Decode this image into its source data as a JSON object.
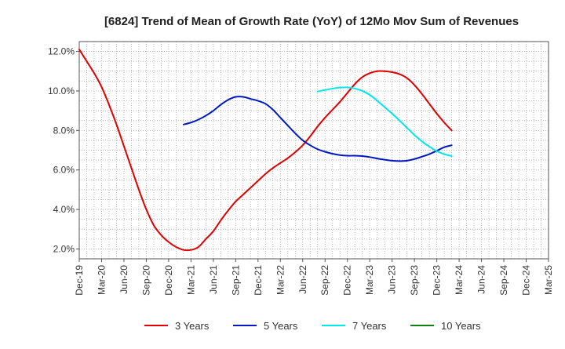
{
  "chart_data": {
    "type": "line",
    "title": "[6824]  Trend of Mean of Growth Rate (YoY) of 12Mo Mov Sum of Revenues",
    "xlabel": "",
    "ylabel": "",
    "ylim": [
      1.5,
      12.5
    ],
    "y_ticks": [
      2.0,
      4.0,
      6.0,
      8.0,
      10.0,
      12.0
    ],
    "y_tick_labels": [
      "2.0%",
      "4.0%",
      "6.0%",
      "8.0%",
      "10.0%",
      "12.0%"
    ],
    "x_tick_labels": [
      "Dec-19",
      "Mar-20",
      "Jun-20",
      "Sep-20",
      "Dec-20",
      "Mar-21",
      "Jun-21",
      "Sep-21",
      "Dec-21",
      "Mar-22",
      "Jun-22",
      "Sep-22",
      "Dec-22",
      "Mar-23",
      "Jun-23",
      "Sep-23",
      "Dec-23",
      "Mar-24",
      "Jun-24",
      "Sep-24",
      "Dec-24",
      "Mar-25"
    ],
    "x_range_months": [
      0,
      63
    ],
    "grid": true,
    "legend_position": "bottom",
    "series": [
      {
        "name": "3 Years",
        "color": "#e00000",
        "points": [
          [
            0,
            12.1
          ],
          [
            1,
            11.5
          ],
          [
            2,
            10.9
          ],
          [
            3,
            10.2
          ],
          [
            4,
            9.3
          ],
          [
            5,
            8.3
          ],
          [
            6,
            7.2
          ],
          [
            7,
            6.1
          ],
          [
            8,
            5.0
          ],
          [
            9,
            4.0
          ],
          [
            10,
            3.2
          ],
          [
            11,
            2.7
          ],
          [
            12,
            2.35
          ],
          [
            13,
            2.1
          ],
          [
            14,
            1.95
          ],
          [
            15,
            1.95
          ],
          [
            16,
            2.1
          ],
          [
            17,
            2.5
          ],
          [
            18,
            2.9
          ],
          [
            19,
            3.45
          ],
          [
            20,
            3.95
          ],
          [
            21,
            4.4
          ],
          [
            22,
            4.75
          ],
          [
            23,
            5.1
          ],
          [
            24,
            5.45
          ],
          [
            25,
            5.8
          ],
          [
            26,
            6.1
          ],
          [
            27,
            6.35
          ],
          [
            28,
            6.6
          ],
          [
            29,
            6.9
          ],
          [
            30,
            7.25
          ],
          [
            31,
            7.7
          ],
          [
            32,
            8.2
          ],
          [
            33,
            8.65
          ],
          [
            34,
            9.05
          ],
          [
            35,
            9.45
          ],
          [
            36,
            9.9
          ],
          [
            37,
            10.35
          ],
          [
            38,
            10.7
          ],
          [
            39,
            10.9
          ],
          [
            40,
            11.0
          ],
          [
            41,
            11.0
          ],
          [
            42,
            10.95
          ],
          [
            43,
            10.85
          ],
          [
            44,
            10.65
          ],
          [
            45,
            10.3
          ],
          [
            46,
            9.85
          ],
          [
            47,
            9.35
          ],
          [
            48,
            8.85
          ],
          [
            49,
            8.4
          ],
          [
            50,
            8.0
          ]
        ]
      },
      {
        "name": "5 Years",
        "color": "#0018c0",
        "points": [
          [
            14,
            8.3
          ],
          [
            15,
            8.4
          ],
          [
            16,
            8.55
          ],
          [
            17,
            8.75
          ],
          [
            18,
            9.0
          ],
          [
            19,
            9.3
          ],
          [
            20,
            9.55
          ],
          [
            21,
            9.7
          ],
          [
            22,
            9.7
          ],
          [
            23,
            9.6
          ],
          [
            24,
            9.5
          ],
          [
            25,
            9.35
          ],
          [
            26,
            9.05
          ],
          [
            27,
            8.65
          ],
          [
            28,
            8.25
          ],
          [
            29,
            7.85
          ],
          [
            30,
            7.5
          ],
          [
            31,
            7.25
          ],
          [
            32,
            7.05
          ],
          [
            33,
            6.92
          ],
          [
            34,
            6.82
          ],
          [
            35,
            6.75
          ],
          [
            36,
            6.72
          ],
          [
            37,
            6.72
          ],
          [
            38,
            6.7
          ],
          [
            39,
            6.65
          ],
          [
            40,
            6.58
          ],
          [
            41,
            6.52
          ],
          [
            42,
            6.47
          ],
          [
            43,
            6.45
          ],
          [
            44,
            6.47
          ],
          [
            45,
            6.55
          ],
          [
            46,
            6.67
          ],
          [
            47,
            6.8
          ],
          [
            48,
            6.97
          ],
          [
            49,
            7.15
          ],
          [
            50,
            7.25
          ]
        ]
      },
      {
        "name": "7 Years",
        "color": "#00e8e8",
        "points": [
          [
            32,
            9.97
          ],
          [
            33,
            10.05
          ],
          [
            34,
            10.12
          ],
          [
            35,
            10.17
          ],
          [
            36,
            10.18
          ],
          [
            37,
            10.12
          ],
          [
            38,
            10.0
          ],
          [
            39,
            9.8
          ],
          [
            40,
            9.5
          ],
          [
            41,
            9.18
          ],
          [
            42,
            8.85
          ],
          [
            43,
            8.5
          ],
          [
            44,
            8.13
          ],
          [
            45,
            7.77
          ],
          [
            46,
            7.45
          ],
          [
            47,
            7.18
          ],
          [
            48,
            6.95
          ],
          [
            49,
            6.8
          ],
          [
            50,
            6.7
          ]
        ]
      },
      {
        "name": "10 Years",
        "color": "#108010",
        "points": []
      }
    ]
  }
}
